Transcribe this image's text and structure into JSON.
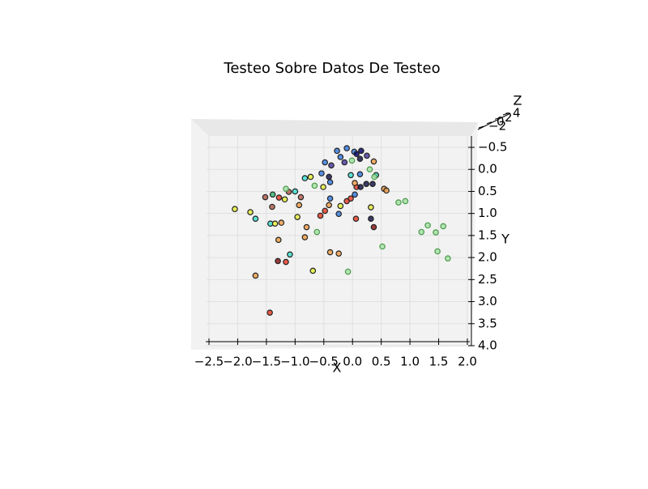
{
  "chart_data": {
    "type": "scatter",
    "title": "Testeo Sobre Datos De Testeo",
    "x_label": "X",
    "y_label": "Y",
    "z_label": "Z",
    "xlim": [
      -2.5,
      2.0
    ],
    "xticks": [
      {
        "value": -2.5,
        "label": "−2.5"
      },
      {
        "value": -2.0,
        "label": "−2.0"
      },
      {
        "value": -1.5,
        "label": "−1.5"
      },
      {
        "value": -1.0,
        "label": "−1.0"
      },
      {
        "value": -0.5,
        "label": "−0.5"
      },
      {
        "value": 0.0,
        "label": "0.0"
      },
      {
        "value": 0.5,
        "label": "0.5"
      },
      {
        "value": 1.0,
        "label": "1.0"
      },
      {
        "value": 1.5,
        "label": "1.5"
      },
      {
        "value": 2.0,
        "label": "2.0"
      }
    ],
    "ylim": [
      -0.5,
      4.0
    ],
    "y_inverted": true,
    "yticks": [
      {
        "value": -0.5,
        "label": "−0.5"
      },
      {
        "value": 0.0,
        "label": "0.0"
      },
      {
        "value": 0.5,
        "label": "0.5"
      },
      {
        "value": 1.0,
        "label": "1.0"
      },
      {
        "value": 1.5,
        "label": "1.5"
      },
      {
        "value": 2.0,
        "label": "2.0"
      },
      {
        "value": 2.5,
        "label": "2.5"
      },
      {
        "value": 3.0,
        "label": "3.0"
      },
      {
        "value": 3.5,
        "label": "3.5"
      },
      {
        "value": 4.0,
        "label": "4.0"
      }
    ],
    "zlim": [
      -2,
      4
    ],
    "zticks": [
      {
        "value": -2,
        "label": "−2"
      },
      0,
      2,
      4
    ],
    "grid": true,
    "x": [
      -1.44,
      -1.69,
      -1.3,
      -1.16,
      -1.09,
      -0.69,
      -0.08,
      -0.39,
      -0.24,
      0.52,
      1.48,
      1.66,
      1.2,
      1.31,
      1.45,
      1.58,
      0.8,
      0.92,
      -2.05,
      -1.69,
      -1.78,
      -1.29,
      -1.43,
      -1.35,
      -1.24,
      -1.4,
      -1.52,
      -1.39,
      -1.28,
      -1.18,
      -1.11,
      -1.16,
      -1.0,
      -0.9,
      -0.93,
      -0.96,
      -0.8,
      -0.83,
      -0.62,
      -0.73,
      -0.83,
      -0.66,
      -0.54,
      -0.48,
      -0.41,
      -0.39,
      -0.51,
      -0.39,
      -0.41,
      -0.56,
      -0.48,
      -0.24,
      -0.21,
      -0.1,
      -0.03,
      0.04,
      0.07,
      0.14,
      0.04,
      -0.03,
      0.13,
      0.24,
      0.35,
      0.41,
      0.3,
      0.37,
      0.25,
      0.13,
      -0.01,
      0.03,
      -0.1,
      -0.27,
      -0.21,
      -0.14,
      -0.37,
      0.07,
      0.15,
      0.55,
      0.59,
      0.32,
      0.32,
      0.37,
      0.06,
      0.38
    ],
    "y": [
      3.25,
      2.41,
      2.08,
      2.1,
      1.93,
      2.3,
      2.32,
      1.88,
      1.91,
      1.75,
      1.86,
      2.02,
      1.42,
      1.27,
      1.43,
      1.29,
      0.75,
      0.72,
      0.9,
      1.12,
      0.97,
      1.6,
      1.23,
      1.23,
      1.21,
      0.85,
      0.63,
      0.57,
      0.64,
      0.68,
      0.51,
      0.44,
      0.5,
      0.63,
      0.81,
      1.08,
      1.31,
      1.54,
      1.42,
      0.17,
      0.2,
      0.37,
      0.09,
      -0.16,
      0.17,
      0.29,
      0.4,
      0.66,
      0.81,
      1.05,
      0.94,
      1.01,
      0.83,
      0.72,
      0.66,
      0.57,
      0.4,
      0.4,
      0.31,
      0.13,
      0.11,
      0.33,
      0.33,
      0.13,
      0.0,
      -0.18,
      -0.31,
      -0.24,
      -0.2,
      -0.4,
      -0.48,
      -0.42,
      -0.28,
      -0.16,
      -0.09,
      -0.35,
      -0.42,
      0.44,
      0.48,
      0.86,
      1.12,
      1.31,
      1.12,
      0.17
    ],
    "colors": [
      "#e8412c",
      "#f0a04b",
      "#8b1a1a",
      "#e8412c",
      "#40e0d0",
      "#e6ef3e",
      "#a8e0a8",
      "#f0a04b",
      "#f0a04b",
      "#a8e0a8",
      "#a8e0a8",
      "#a8e0a8",
      "#a8e0a8",
      "#a8e0a8",
      "#a8e0a8",
      "#a8e0a8",
      "#a8e0a8",
      "#a8e0a8",
      "#e6ef3e",
      "#40e0d0",
      "#e6ef3e",
      "#f0a04b",
      "#40e0d0",
      "#e6ef3e",
      "#f0a04b",
      "#b06050",
      "#b06050",
      "#3cb371",
      "#e8412c",
      "#e6ef3e",
      "#b06050",
      "#a8e0a8",
      "#40e0d0",
      "#b06050",
      "#f0a04b",
      "#e6ef3e",
      "#f0a04b",
      "#f0a04b",
      "#a8e0a8",
      "#e6ef3e",
      "#40e0d0",
      "#a8e0a8",
      "#3a7ee0",
      "#3a7ee0",
      "#1a1a50",
      "#3a7ee0",
      "#e6ef3e",
      "#3a7ee0",
      "#f0a04b",
      "#e8412c",
      "#e8412c",
      "#3a7ee0",
      "#e6ef3e",
      "#e8412c",
      "#e8412c",
      "#3a7ee0",
      "#e8412c",
      "#1a1a50",
      "#f0a04b",
      "#40e0d0",
      "#3a7ee0",
      "#1a1a50",
      "#1a1a50",
      "#40e0d0",
      "#a8e0a8",
      "#f0a04b",
      "#5040a0",
      "#1a1a50",
      "#a8e0a8",
      "#3a7ee0",
      "#3a7ee0",
      "#3a7ee0",
      "#3a7ee0",
      "#5040a0",
      "#5040a0",
      "#0a0a70",
      "#0a0a70",
      "#f0a04b",
      "#f0a04b",
      "#e6ef3e",
      "#1a1a50",
      "#8b1a1a",
      "#e8412c",
      "#a8e0a8"
    ]
  }
}
